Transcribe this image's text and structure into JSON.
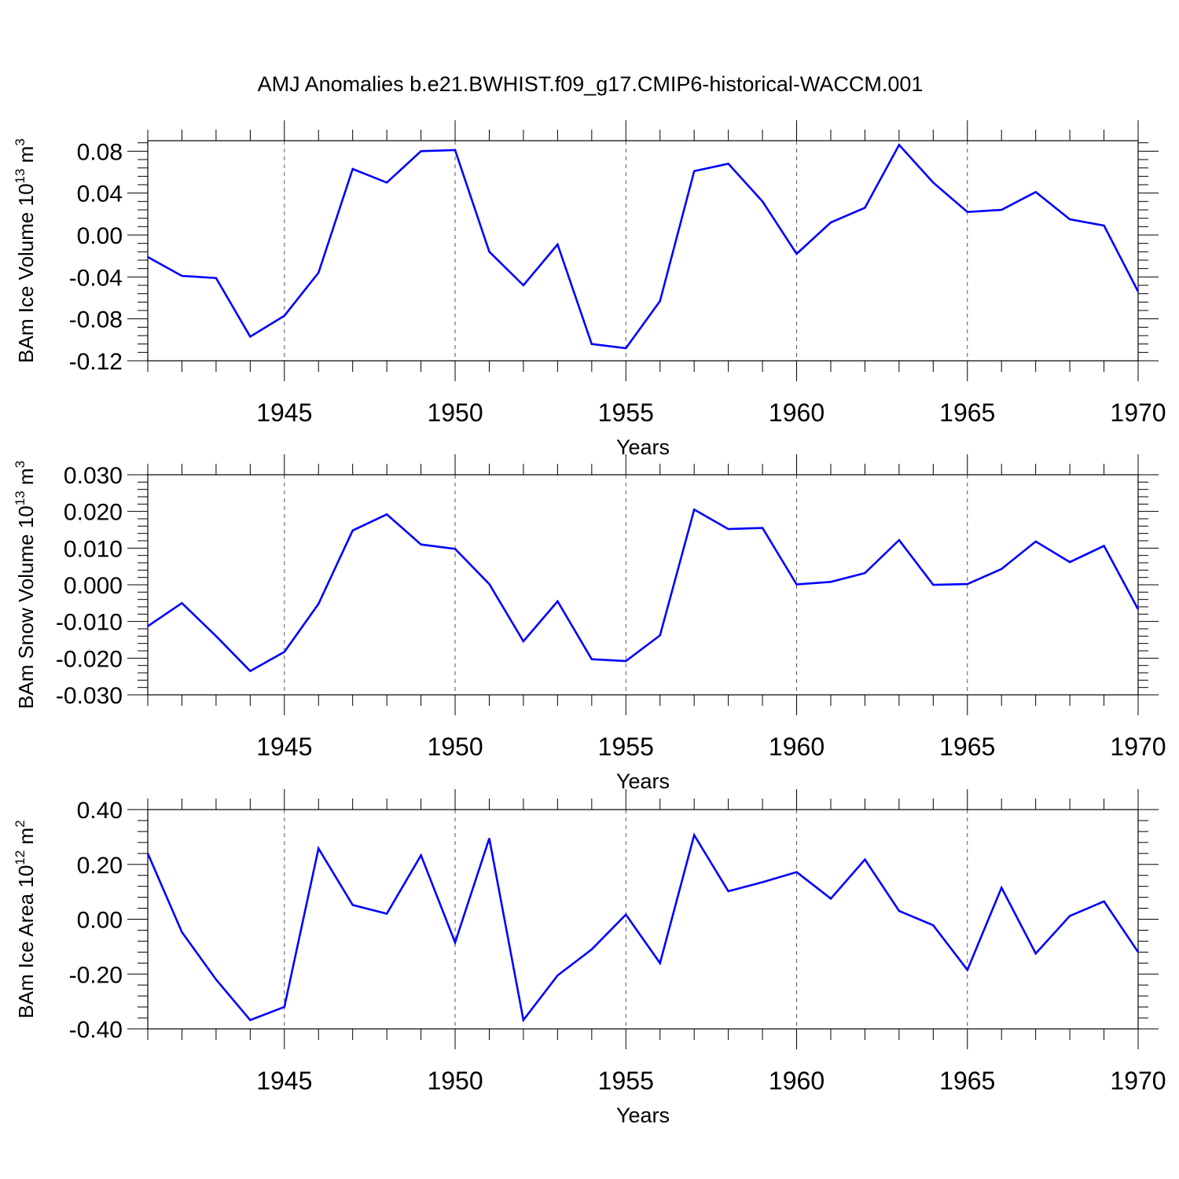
{
  "title": "AMJ Anomalies b.e21.BWHIST.f09_g17.CMIP6-historical-WACCM.001",
  "line_color": "#0000ff",
  "chart_data": [
    {
      "type": "line",
      "ylabel": "BAm Ice Volume 10",
      "ylabel_exponent": "13",
      "ylabel_unit": "m",
      "ylabel_unit_exponent": "3",
      "xlabel": "Years",
      "xlim": [
        1941,
        1970
      ],
      "ylim": [
        -0.12,
        0.09
      ],
      "yticks": [
        -0.12,
        -0.08,
        -0.04,
        0.0,
        0.04,
        0.08
      ],
      "ytick_labels": [
        "-0.12",
        "-0.08",
        "-0.04",
        "0.00",
        "0.04",
        "0.08"
      ],
      "xticks": [
        1945,
        1950,
        1955,
        1960,
        1965,
        1970
      ],
      "xtick_labels": [
        "1945",
        "1950",
        "1955",
        "1960",
        "1965",
        "1970"
      ],
      "x": [
        1941,
        1942,
        1943,
        1944,
        1945,
        1946,
        1947,
        1948,
        1949,
        1950,
        1951,
        1952,
        1953,
        1954,
        1955,
        1956,
        1957,
        1958,
        1959,
        1960,
        1961,
        1962,
        1963,
        1964,
        1965,
        1966,
        1967,
        1968,
        1969,
        1970
      ],
      "series": [
        {
          "values": [
            -0.021,
            -0.039,
            -0.041,
            -0.097,
            -0.077,
            -0.036,
            0.063,
            0.05,
            0.08,
            0.081,
            -0.016,
            -0.048,
            -0.009,
            -0.104,
            -0.108,
            -0.063,
            0.061,
            0.068,
            0.032,
            -0.018,
            0.012,
            0.026,
            0.086,
            0.05,
            0.022,
            0.024,
            0.041,
            0.015,
            0.009,
            -0.054
          ]
        }
      ],
      "grid": "dashed vertical at major x ticks"
    },
    {
      "type": "line",
      "ylabel": "BAm Snow Volume 10",
      "ylabel_exponent": "13",
      "ylabel_unit": "m",
      "ylabel_unit_exponent": "3",
      "xlabel": "Years",
      "xlim": [
        1941,
        1970
      ],
      "ylim": [
        -0.03,
        0.03
      ],
      "yticks": [
        -0.03,
        -0.02,
        -0.01,
        0.0,
        0.01,
        0.02,
        0.03
      ],
      "ytick_labels": [
        "-0.030",
        "-0.020",
        "-0.010",
        "0.000",
        "0.010",
        "0.020",
        "0.030"
      ],
      "xticks": [
        1945,
        1950,
        1955,
        1960,
        1965,
        1970
      ],
      "xtick_labels": [
        "1945",
        "1950",
        "1955",
        "1960",
        "1965",
        "1970"
      ],
      "x": [
        1941,
        1942,
        1943,
        1944,
        1945,
        1946,
        1947,
        1948,
        1949,
        1950,
        1951,
        1952,
        1953,
        1954,
        1955,
        1956,
        1957,
        1958,
        1959,
        1960,
        1961,
        1962,
        1963,
        1964,
        1965,
        1966,
        1967,
        1968,
        1969,
        1970
      ],
      "series": [
        {
          "values": [
            -0.0113,
            -0.005,
            -0.014,
            -0.0235,
            -0.0183,
            -0.0052,
            0.0148,
            0.0192,
            0.011,
            0.0098,
            0.0002,
            -0.0154,
            -0.0045,
            -0.0203,
            -0.0208,
            -0.0138,
            0.0205,
            0.0152,
            0.0155,
            0.0001,
            0.0008,
            0.0032,
            0.0122,
            0.0,
            0.0002,
            0.0043,
            0.0118,
            0.0062,
            0.0106,
            -0.0067
          ]
        }
      ],
      "grid": "dashed vertical at major x ticks"
    },
    {
      "type": "line",
      "ylabel": "BAm Ice Area 10",
      "ylabel_exponent": "12",
      "ylabel_unit": "m",
      "ylabel_unit_exponent": "2",
      "xlabel": "Years",
      "xlim": [
        1941,
        1970
      ],
      "ylim": [
        -0.4,
        0.4
      ],
      "yticks": [
        -0.4,
        -0.2,
        0.0,
        0.2,
        0.4
      ],
      "ytick_labels": [
        "-0.40",
        "-0.20",
        "0.00",
        "0.20",
        "0.40"
      ],
      "xticks": [
        1945,
        1950,
        1955,
        1960,
        1965,
        1970
      ],
      "xtick_labels": [
        "1945",
        "1950",
        "1955",
        "1960",
        "1965",
        "1970"
      ],
      "x": [
        1941,
        1942,
        1943,
        1944,
        1945,
        1946,
        1947,
        1948,
        1949,
        1950,
        1951,
        1952,
        1953,
        1954,
        1955,
        1956,
        1957,
        1958,
        1959,
        1960,
        1961,
        1962,
        1963,
        1964,
        1965,
        1966,
        1967,
        1968,
        1969,
        1970
      ],
      "series": [
        {
          "values": [
            0.24,
            -0.047,
            -0.22,
            -0.368,
            -0.32,
            0.258,
            0.052,
            0.02,
            0.233,
            -0.085,
            0.295,
            -0.368,
            -0.205,
            -0.11,
            0.017,
            -0.16,
            0.307,
            0.102,
            0.135,
            0.172,
            0.075,
            0.218,
            0.03,
            -0.022,
            -0.185,
            0.115,
            -0.125,
            0.012,
            0.065,
            -0.12
          ]
        }
      ],
      "grid": "dashed vertical at major x ticks"
    }
  ]
}
